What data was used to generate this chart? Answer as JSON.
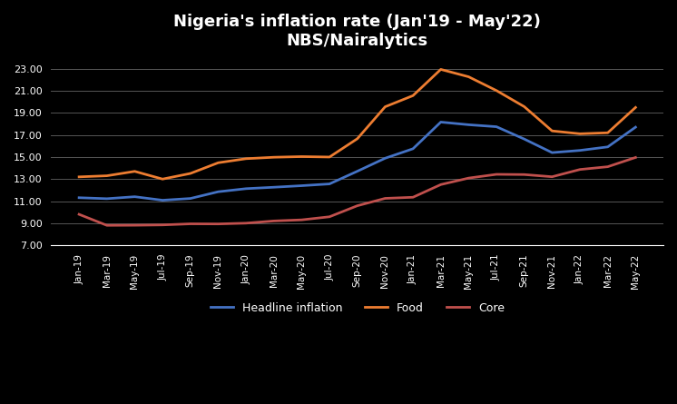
{
  "title_line1": "Nigeria's inflation rate (Jan'19 - May'22)",
  "title_line2": "NBS/Nairalytics",
  "background_color": "#000000",
  "text_color": "#ffffff",
  "grid_color": "#555555",
  "ylim": [
    7.0,
    24.0
  ],
  "yticks": [
    7.0,
    9.0,
    11.0,
    13.0,
    15.0,
    17.0,
    19.0,
    21.0,
    23.0
  ],
  "x_labels": [
    "Jan-19",
    "Mar-19",
    "May-19",
    "Jul-19",
    "Sep-19",
    "Nov-19",
    "Jan-20",
    "Mar-20",
    "May-20",
    "Jul-20",
    "Sep-20",
    "Nov-20",
    "Jan-21",
    "Mar-21",
    "May-21",
    "Jul-21",
    "Sep-21",
    "Nov-21",
    "Jan-22",
    "Mar-22",
    "May-22"
  ],
  "headline": [
    11.31,
    11.22,
    11.4,
    11.08,
    11.24,
    11.85,
    12.13,
    12.26,
    12.4,
    12.56,
    13.71,
    14.89,
    15.75,
    18.17,
    17.93,
    17.75,
    16.63,
    15.4,
    15.6,
    15.92,
    17.71
  ],
  "food": [
    13.2,
    13.3,
    13.7,
    13.0,
    13.51,
    14.48,
    14.85,
    14.98,
    15.04,
    15.0,
    16.66,
    19.56,
    20.57,
    22.95,
    22.28,
    21.03,
    19.57,
    17.37,
    17.11,
    17.2,
    19.5
  ],
  "core": [
    9.8,
    8.8,
    8.81,
    8.84,
    8.94,
    8.93,
    9.0,
    9.2,
    9.3,
    9.58,
    10.58,
    11.25,
    11.35,
    12.5,
    13.09,
    13.43,
    13.41,
    13.21,
    13.87,
    14.12,
    14.96
  ],
  "headline_color": "#4472c4",
  "food_color": "#ed7d31",
  "core_color": "#c0504d",
  "line_width": 2.0,
  "legend_labels": [
    "Headline inflation",
    "Food",
    "Core"
  ]
}
